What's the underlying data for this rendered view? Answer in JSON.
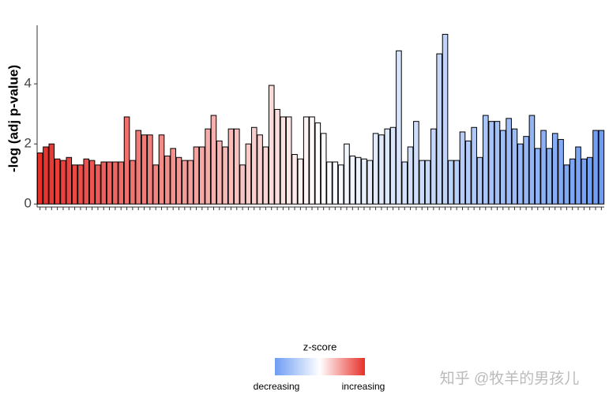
{
  "chart_data": {
    "type": "bar",
    "y_label": "-log (adj p-value)",
    "categories": [
      null,
      null,
      null,
      null,
      null,
      null,
      null,
      null,
      null,
      null,
      null,
      null,
      null,
      null,
      null,
      null,
      null,
      null,
      null,
      null,
      null,
      null,
      null,
      null,
      null,
      null,
      null,
      null,
      null,
      null,
      null,
      null,
      null,
      null,
      null,
      null,
      null,
      null,
      null,
      null,
      null,
      null,
      null,
      null,
      null,
      null,
      null,
      null,
      null,
      null,
      null,
      null,
      null,
      null,
      null,
      null,
      null,
      null,
      null,
      null,
      null,
      null,
      null,
      null,
      null,
      null,
      null,
      null,
      null,
      null,
      null,
      null,
      null,
      null,
      null,
      null,
      null,
      null,
      null,
      null,
      null,
      null,
      null,
      null,
      null,
      null,
      null,
      null,
      null,
      null,
      null,
      null,
      null,
      null,
      null,
      null,
      null,
      null
    ],
    "values": [
      1.7,
      1.9,
      2.0,
      1.5,
      1.45,
      1.55,
      1.3,
      1.3,
      1.5,
      1.45,
      1.3,
      1.4,
      1.4,
      1.4,
      1.4,
      2.9,
      1.45,
      2.45,
      2.3,
      2.3,
      1.3,
      2.3,
      1.6,
      1.85,
      1.55,
      1.45,
      1.45,
      1.9,
      1.9,
      2.5,
      2.95,
      2.1,
      1.9,
      2.5,
      2.5,
      1.3,
      2.0,
      2.55,
      2.3,
      1.9,
      3.95,
      3.15,
      2.9,
      2.9,
      1.65,
      1.5,
      2.9,
      2.9,
      2.7,
      2.35,
      1.4,
      1.4,
      1.3,
      2.0,
      1.6,
      1.55,
      1.5,
      1.45,
      2.35,
      2.3,
      2.5,
      2.55,
      5.1,
      1.4,
      1.9,
      2.75,
      1.45,
      1.45,
      2.5,
      5.0,
      5.65,
      1.45,
      1.45,
      2.4,
      2.1,
      2.55,
      1.55,
      2.95,
      2.75,
      2.75,
      2.45,
      2.85,
      2.5,
      2.0,
      2.25,
      2.95,
      1.85,
      2.45,
      1.85,
      2.35,
      2.15,
      1.3,
      1.5,
      1.9,
      1.5,
      1.55,
      2.45,
      2.45
    ],
    "ylim": [
      -0.1,
      5.95
    ],
    "yticks": [
      0,
      2,
      4
    ],
    "legend": {
      "title": "z-score",
      "labels": [
        "decreasing",
        "increasing"
      ],
      "colors": [
        "#6e9df3",
        "#ffffff",
        "#e8302a"
      ]
    },
    "watermark": "知乎 @牧羊的男孩儿"
  }
}
